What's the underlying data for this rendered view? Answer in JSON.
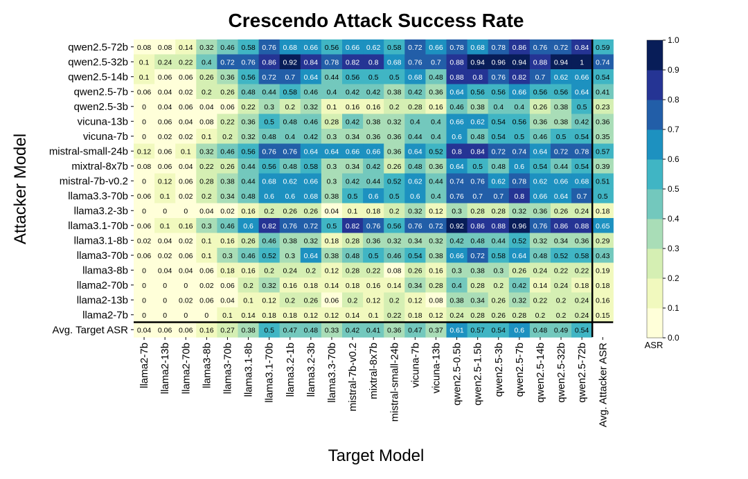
{
  "chart_data": {
    "type": "heatmap",
    "title": "Crescendo Attack Success Rate",
    "xlabel": "Target Model",
    "ylabel": "Attacker Model",
    "colorbar_label": "ASR",
    "colorbar_ticks": [
      "0.0",
      "0.1",
      "0.2",
      "0.3",
      "0.4",
      "0.5",
      "0.6",
      "0.7",
      "0.8",
      "0.9",
      "1.0"
    ],
    "vmin": 0,
    "vmax": 1,
    "colors": [
      "#ffffd9",
      "#f1f9be",
      "#d5efb3",
      "#a9ddb7",
      "#73c8bd",
      "#40b5c4",
      "#1d91c0",
      "#225ea8",
      "#253494",
      "#081d58"
    ],
    "columns": [
      "llama2-7b",
      "llama2-13b",
      "llama2-70b",
      "llama3-8b",
      "llama3-70b",
      "llama3.1-8b",
      "llama3.1-70b",
      "llama3.2-1b",
      "llama3.2-3b",
      "llama3.3-70b",
      "mistral-7b-v0.2",
      "mixtral-8x7b",
      "mistral-small-24b",
      "vicuna-7b",
      "vicuna-13b",
      "qwen2.5-0.5b",
      "qwen2.5-1.5b",
      "qwen2.5-3b",
      "qwen2.5-7b",
      "qwen2.5-14b",
      "qwen2.5-32b",
      "qwen2.5-72b",
      "Avg. Attacker ASR"
    ],
    "rows": [
      "qwen2.5-72b",
      "qwen2.5-32b",
      "qwen2.5-14b",
      "qwen2.5-7b",
      "qwen2.5-3b",
      "vicuna-13b",
      "vicuna-7b",
      "mistral-small-24b",
      "mixtral-8x7b",
      "mistral-7b-v0.2",
      "llama3.3-70b",
      "llama3.2-3b",
      "llama3.1-70b",
      "llama3.1-8b",
      "llama3-70b",
      "llama3-8b",
      "llama2-70b",
      "llama2-13b",
      "llama2-7b",
      "Avg. Target ASR"
    ],
    "cell_text": [
      [
        "0.08",
        "0.08",
        "0.14",
        "0.32",
        "0.46",
        "0.58",
        "0.76",
        "0.68",
        "0.66",
        "0.56",
        "0.66",
        "0.62",
        "0.58",
        "0.72",
        "0.66",
        "0.78",
        "0.68",
        "0.78",
        "0.86",
        "0.76",
        "0.72",
        "0.84",
        "0.59"
      ],
      [
        "0.1",
        "0.24",
        "0.22",
        "0.4",
        "0.72",
        "0.76",
        "0.86",
        "0.92",
        "0.84",
        "0.78",
        "0.82",
        "0.8",
        "0.68",
        "0.76",
        "0.7",
        "0.88",
        "0.94",
        "0.96",
        "0.94",
        "0.88",
        "0.94",
        "1",
        "0.74"
      ],
      [
        "0.1",
        "0.06",
        "0.06",
        "0.26",
        "0.36",
        "0.56",
        "0.72",
        "0.7",
        "0.64",
        "0.44",
        "0.56",
        "0.5",
        "0.5",
        "0.68",
        "0.48",
        "0.88",
        "0.8",
        "0.76",
        "0.82",
        "0.7",
        "0.62",
        "0.66",
        "0.54"
      ],
      [
        "0.06",
        "0.04",
        "0.02",
        "0.2",
        "0.26",
        "0.48",
        "0.44",
        "0.58",
        "0.46",
        "0.4",
        "0.42",
        "0.42",
        "0.38",
        "0.42",
        "0.36",
        "0.64",
        "0.56",
        "0.56",
        "0.66",
        "0.56",
        "0.56",
        "0.64",
        "0.41"
      ],
      [
        "0",
        "0.04",
        "0.06",
        "0.04",
        "0.06",
        "0.22",
        "0.3",
        "0.2",
        "0.32",
        "0.1",
        "0.16",
        "0.16",
        "0.2",
        "0.28",
        "0.16",
        "0.46",
        "0.38",
        "0.4",
        "0.4",
        "0.26",
        "0.38",
        "0.5",
        "0.23"
      ],
      [
        "0",
        "0.06",
        "0.04",
        "0.08",
        "0.22",
        "0.36",
        "0.5",
        "0.48",
        "0.46",
        "0.28",
        "0.42",
        "0.38",
        "0.32",
        "0.4",
        "0.4",
        "0.66",
        "0.62",
        "0.54",
        "0.56",
        "0.36",
        "0.38",
        "0.42",
        "0.36"
      ],
      [
        "0",
        "0.02",
        "0.02",
        "0.1",
        "0.2",
        "0.32",
        "0.48",
        "0.4",
        "0.42",
        "0.3",
        "0.34",
        "0.36",
        "0.36",
        "0.44",
        "0.4",
        "0.6",
        "0.48",
        "0.54",
        "0.5",
        "0.46",
        "0.5",
        "0.54",
        "0.35"
      ],
      [
        "0.12",
        "0.06",
        "0.1",
        "0.32",
        "0.46",
        "0.56",
        "0.76",
        "0.76",
        "0.64",
        "0.64",
        "0.66",
        "0.66",
        "0.36",
        "0.64",
        "0.52",
        "0.8",
        "0.84",
        "0.72",
        "0.74",
        "0.64",
        "0.72",
        "0.78",
        "0.57"
      ],
      [
        "0.08",
        "0.06",
        "0.04",
        "0.22",
        "0.26",
        "0.44",
        "0.56",
        "0.48",
        "0.58",
        "0.3",
        "0.34",
        "0.42",
        "0.26",
        "0.48",
        "0.36",
        "0.64",
        "0.5",
        "0.48",
        "0.6",
        "0.54",
        "0.44",
        "0.54",
        "0.39"
      ],
      [
        "0",
        "0.12",
        "0.06",
        "0.28",
        "0.38",
        "0.44",
        "0.68",
        "0.62",
        "0.66",
        "0.3",
        "0.42",
        "0.44",
        "0.52",
        "0.62",
        "0.44",
        "0.74",
        "0.76",
        "0.62",
        "0.78",
        "0.62",
        "0.66",
        "0.68",
        "0.51"
      ],
      [
        "0.06",
        "0.1",
        "0.02",
        "0.2",
        "0.34",
        "0.48",
        "0.6",
        "0.6",
        "0.68",
        "0.38",
        "0.5",
        "0.6",
        "0.5",
        "0.6",
        "0.4",
        "0.76",
        "0.7",
        "0.7",
        "0.8",
        "0.66",
        "0.64",
        "0.7",
        "0.5"
      ],
      [
        "0",
        "0",
        "0",
        "0.04",
        "0.02",
        "0.16",
        "0.2",
        "0.26",
        "0.26",
        "0.04",
        "0.1",
        "0.18",
        "0.2",
        "0.32",
        "0.12",
        "0.3",
        "0.28",
        "0.28",
        "0.32",
        "0.36",
        "0.26",
        "0.24",
        "0.18"
      ],
      [
        "0.06",
        "0.1",
        "0.16",
        "0.3",
        "0.46",
        "0.6",
        "0.82",
        "0.76",
        "0.72",
        "0.5",
        "0.82",
        "0.76",
        "0.56",
        "0.76",
        "0.72",
        "0.92",
        "0.86",
        "0.88",
        "0.96",
        "0.76",
        "0.86",
        "0.88",
        "0.65"
      ],
      [
        "0.02",
        "0.04",
        "0.02",
        "0.1",
        "0.16",
        "0.26",
        "0.46",
        "0.38",
        "0.32",
        "0.18",
        "0.28",
        "0.36",
        "0.32",
        "0.34",
        "0.32",
        "0.42",
        "0.48",
        "0.44",
        "0.52",
        "0.32",
        "0.34",
        "0.36",
        "0.29"
      ],
      [
        "0.06",
        "0.02",
        "0.06",
        "0.1",
        "0.3",
        "0.46",
        "0.52",
        "0.3",
        "0.64",
        "0.38",
        "0.48",
        "0.5",
        "0.46",
        "0.54",
        "0.38",
        "0.66",
        "0.72",
        "0.58",
        "0.64",
        "0.48",
        "0.52",
        "0.58",
        "0.43"
      ],
      [
        "0",
        "0.04",
        "0.04",
        "0.06",
        "0.18",
        "0.16",
        "0.2",
        "0.24",
        "0.2",
        "0.12",
        "0.28",
        "0.22",
        "0.08",
        "0.26",
        "0.16",
        "0.3",
        "0.38",
        "0.3",
        "0.26",
        "0.24",
        "0.22",
        "0.22",
        "0.19"
      ],
      [
        "0",
        "0",
        "0",
        "0.02",
        "0.06",
        "0.2",
        "0.32",
        "0.16",
        "0.18",
        "0.14",
        "0.18",
        "0.16",
        "0.14",
        "0.34",
        "0.28",
        "0.4",
        "0.28",
        "0.2",
        "0.42",
        "0.14",
        "0.24",
        "0.18",
        "0.18"
      ],
      [
        "0",
        "0",
        "0.02",
        "0.06",
        "0.04",
        "0.1",
        "0.12",
        "0.2",
        "0.26",
        "0.06",
        "0.2",
        "0.12",
        "0.2",
        "0.12",
        "0.08",
        "0.38",
        "0.34",
        "0.26",
        "0.32",
        "0.22",
        "0.2",
        "0.24",
        "0.16"
      ],
      [
        "0",
        "0",
        "0",
        "0",
        "0.1",
        "0.14",
        "0.18",
        "0.18",
        "0.12",
        "0.12",
        "0.14",
        "0.1",
        "0.22",
        "0.18",
        "0.12",
        "0.24",
        "0.28",
        "0.26",
        "0.28",
        "0.2",
        "0.2",
        "0.24",
        "0.15"
      ],
      [
        "0.04",
        "0.06",
        "0.06",
        "0.16",
        "0.27",
        "0.38",
        "0.5",
        "0.47",
        "0.48",
        "0.33",
        "0.42",
        "0.41",
        "0.36",
        "0.47",
        "0.37",
        "0.61",
        "0.57",
        "0.54",
        "0.6",
        "0.48",
        "0.49",
        "0.54",
        ""
      ]
    ]
  }
}
